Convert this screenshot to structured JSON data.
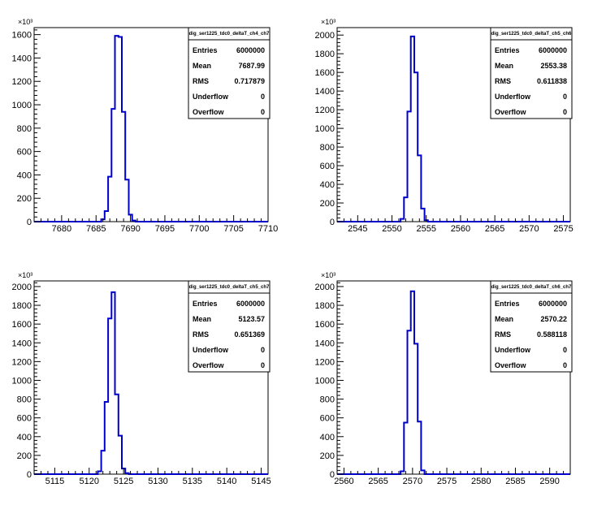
{
  "chart_data": [
    {
      "type": "histogram",
      "stats_title": "dig_ser1225_tdc0_deltaT_ch4_ch7",
      "stats": [
        {
          "label": "Entries",
          "value": "6000000"
        },
        {
          "label": "Mean",
          "value": "7687.99"
        },
        {
          "label": "RMS",
          "value": "0.717879"
        },
        {
          "label": "Underflow",
          "value": "0"
        },
        {
          "label": "Overflow",
          "value": "0"
        }
      ],
      "y_multiplier": "×10³",
      "xlim": [
        7676,
        7710
      ],
      "ylim": [
        0,
        1660
      ],
      "x_ticks": [
        7680,
        7685,
        7690,
        7695,
        7700,
        7705,
        7710
      ],
      "y_ticks": [
        0,
        200,
        400,
        600,
        800,
        1000,
        1200,
        1400,
        1600
      ],
      "bin_width": 0.5,
      "bins": [
        {
          "x": 7686.0,
          "y": 20
        },
        {
          "x": 7686.5,
          "y": 90
        },
        {
          "x": 7687.0,
          "y": 385
        },
        {
          "x": 7687.5,
          "y": 965
        },
        {
          "x": 7688.0,
          "y": 1590
        },
        {
          "x": 7688.5,
          "y": 1580
        },
        {
          "x": 7689.0,
          "y": 940
        },
        {
          "x": 7689.5,
          "y": 360
        },
        {
          "x": 7690.0,
          "y": 60
        },
        {
          "x": 7690.5,
          "y": 10
        }
      ]
    },
    {
      "type": "histogram",
      "stats_title": "dig_ser1225_tdc0_deltaT_ch5_ch6",
      "stats": [
        {
          "label": "Entries",
          "value": "6000000"
        },
        {
          "label": "Mean",
          "value": "2553.38"
        },
        {
          "label": "RMS",
          "value": "0.611838"
        },
        {
          "label": "Underflow",
          "value": "0"
        },
        {
          "label": "Overflow",
          "value": "0"
        }
      ],
      "y_multiplier": "×10³",
      "xlim": [
        2542,
        2576
      ],
      "ylim": [
        0,
        2080
      ],
      "x_ticks": [
        2545,
        2550,
        2555,
        2560,
        2565,
        2570,
        2575
      ],
      "y_ticks": [
        0,
        200,
        400,
        600,
        800,
        1000,
        1200,
        1400,
        1600,
        1800,
        2000
      ],
      "bin_width": 0.5,
      "bins": [
        {
          "x": 2551.5,
          "y": 30
        },
        {
          "x": 2552.0,
          "y": 260
        },
        {
          "x": 2552.5,
          "y": 1180
        },
        {
          "x": 2553.0,
          "y": 1985
        },
        {
          "x": 2553.5,
          "y": 1600
        },
        {
          "x": 2554.0,
          "y": 710
        },
        {
          "x": 2554.5,
          "y": 140
        },
        {
          "x": 2555.0,
          "y": 15
        }
      ]
    },
    {
      "type": "histogram",
      "stats_title": "dig_ser1225_tdc0_deltaT_ch5_ch7",
      "stats": [
        {
          "label": "Entries",
          "value": "6000000"
        },
        {
          "label": "Mean",
          "value": "5123.57"
        },
        {
          "label": "RMS",
          "value": "0.651369"
        },
        {
          "label": "Underflow",
          "value": "0"
        },
        {
          "label": "Overflow",
          "value": "0"
        }
      ],
      "y_multiplier": "×10³",
      "xlim": [
        5112,
        5146
      ],
      "ylim": [
        0,
        2060
      ],
      "x_ticks": [
        5115,
        5120,
        5125,
        5130,
        5135,
        5140,
        5145
      ],
      "y_ticks": [
        0,
        200,
        400,
        600,
        800,
        1000,
        1200,
        1400,
        1600,
        1800,
        2000
      ],
      "bin_width": 0.5,
      "bins": [
        {
          "x": 5121.5,
          "y": 30
        },
        {
          "x": 5122.0,
          "y": 250
        },
        {
          "x": 5122.5,
          "y": 770
        },
        {
          "x": 5123.0,
          "y": 1660
        },
        {
          "x": 5123.5,
          "y": 1940
        },
        {
          "x": 5124.0,
          "y": 850
        },
        {
          "x": 5124.5,
          "y": 410
        },
        {
          "x": 5125.0,
          "y": 60
        },
        {
          "x": 5125.5,
          "y": 10
        }
      ]
    },
    {
      "type": "histogram",
      "stats_title": "dig_ser1225_tdc0_deltaT_ch6_ch7",
      "stats": [
        {
          "label": "Entries",
          "value": "6000000"
        },
        {
          "label": "Mean",
          "value": "2570.22"
        },
        {
          "label": "RMS",
          "value": "0.588118"
        },
        {
          "label": "Underflow",
          "value": "0"
        },
        {
          "label": "Overflow",
          "value": "0"
        }
      ],
      "y_multiplier": "×10³",
      "xlim": [
        2559,
        2593
      ],
      "ylim": [
        0,
        2060
      ],
      "x_ticks": [
        2560,
        2565,
        2570,
        2575,
        2580,
        2585,
        2590
      ],
      "y_ticks": [
        0,
        200,
        400,
        600,
        800,
        1000,
        1200,
        1400,
        1600,
        1800,
        2000
      ],
      "bin_width": 0.5,
      "bins": [
        {
          "x": 2568.5,
          "y": 30
        },
        {
          "x": 2569.0,
          "y": 550
        },
        {
          "x": 2569.5,
          "y": 1530
        },
        {
          "x": 2570.0,
          "y": 1950
        },
        {
          "x": 2570.5,
          "y": 1390
        },
        {
          "x": 2571.0,
          "y": 560
        },
        {
          "x": 2571.5,
          "y": 40
        }
      ]
    }
  ],
  "colors": {
    "histogram_line": "#0000cc",
    "axis": "#000000",
    "background": "#ffffff"
  }
}
